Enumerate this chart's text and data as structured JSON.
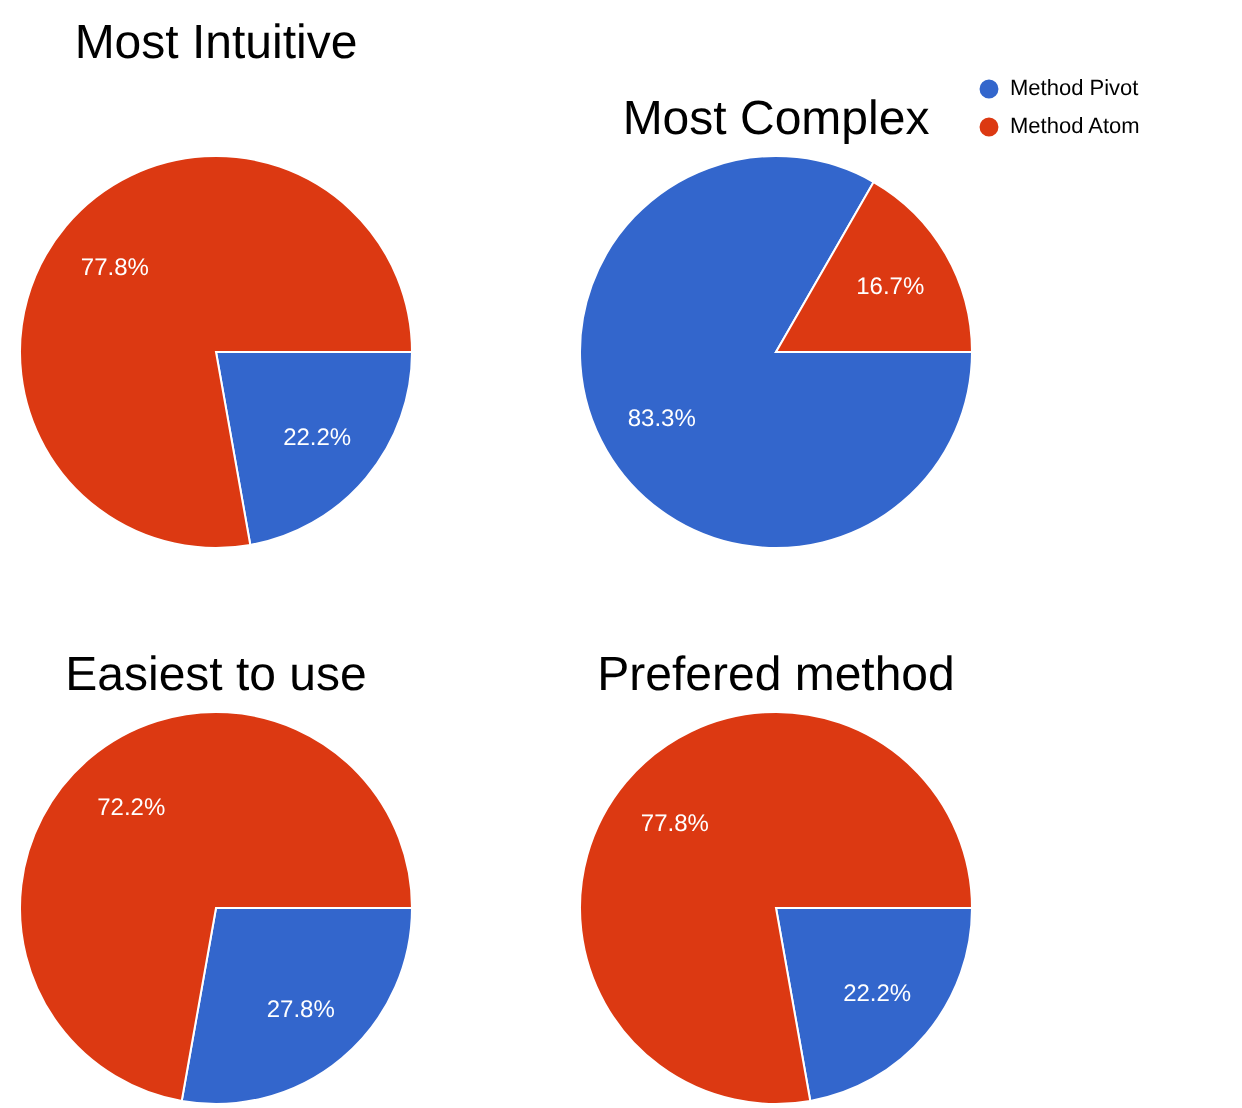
{
  "chart_data": [
    {
      "type": "pie",
      "title": "Most Intuitive",
      "categories": [
        "Method Pivot",
        "Method Atom"
      ],
      "values": [
        22.2,
        77.8
      ],
      "colors": [
        "#3366cc",
        "#dc3912"
      ],
      "value_labels": [
        "22.2%",
        "77.8%"
      ],
      "legend": "top right"
    },
    {
      "type": "pie",
      "title": "Most Complex",
      "categories": [
        null,
        null
      ],
      "values": [
        83.3,
        16.7
      ],
      "colors": [
        "#3366cc",
        "#dc3912"
      ],
      "value_labels": [
        "83.3%",
        "16.7%"
      ]
    },
    {
      "type": "pie",
      "title": "Easiest to use",
      "categories": [
        null,
        null
      ],
      "values": [
        27.8,
        72.2
      ],
      "colors": [
        "#3366cc",
        "#dc3912"
      ],
      "value_labels": [
        "27.8%",
        "72.2%"
      ]
    },
    {
      "type": "pie",
      "title": "Prefered method",
      "categories": [
        null,
        null
      ],
      "values": [
        22.2,
        77.8
      ],
      "colors": [
        "#3366cc",
        "#dc3912"
      ],
      "value_labels": [
        "22.2%",
        "77.8%"
      ]
    }
  ]
}
